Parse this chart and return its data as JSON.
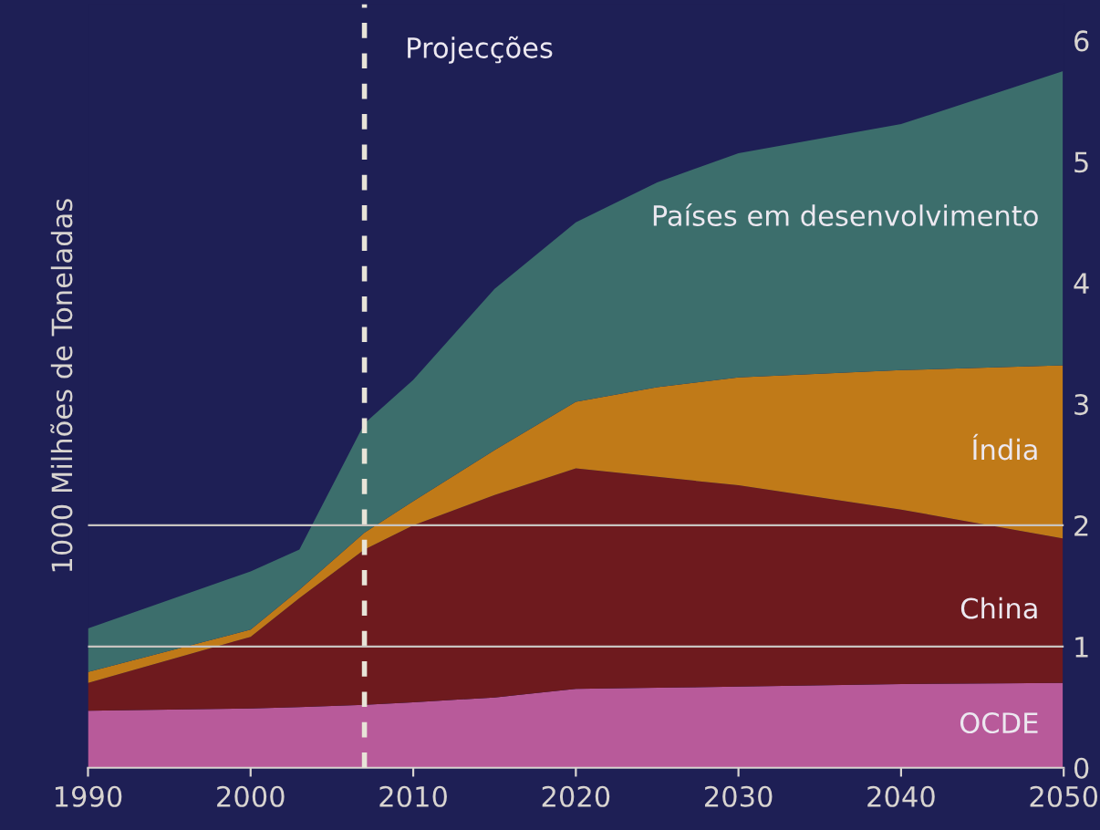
{
  "chart_data": {
    "type": "area",
    "stacked": true,
    "ylabel": "1000 Milhões de Toneladas",
    "x": [
      1990,
      2000,
      2003,
      2007,
      2010,
      2015,
      2020,
      2025,
      2030,
      2040,
      2050
    ],
    "series": [
      {
        "name": "OCDE",
        "color": "#b85a9a",
        "values": [
          0.47,
          0.49,
          0.5,
          0.52,
          0.54,
          0.58,
          0.65,
          0.66,
          0.67,
          0.69,
          0.7
        ]
      },
      {
        "name": "China",
        "color": "#6e1a1e",
        "values": [
          0.23,
          0.59,
          0.9,
          1.28,
          1.46,
          1.67,
          1.82,
          1.74,
          1.66,
          1.44,
          1.19
        ]
      },
      {
        "name": "Índia",
        "color": "#c07a18",
        "values": [
          0.09,
          0.06,
          0.07,
          0.14,
          0.2,
          0.37,
          0.55,
          0.74,
          0.89,
          1.15,
          1.43
        ]
      },
      {
        "name": "Países em desenvolvimento",
        "color": "#3c6e6c",
        "values": [
          0.36,
          0.48,
          0.33,
          0.9,
          1.0,
          1.33,
          1.48,
          1.69,
          1.85,
          2.03,
          2.43
        ]
      }
    ],
    "xlim": [
      1990,
      2050
    ],
    "xticks": [
      1990,
      2000,
      2010,
      2020,
      2030,
      2040,
      2050
    ],
    "ylim": [
      0,
      6.3
    ],
    "yticks": [
      0,
      1,
      2,
      3,
      4,
      5,
      6
    ],
    "ref_lines": [
      {
        "axis": "x",
        "value": 2007,
        "label": "Projecções",
        "color": "#e8e4d8",
        "line_style": "dashed"
      },
      {
        "axis": "y",
        "value": 1,
        "label": null,
        "color": "#c8c4c0"
      },
      {
        "axis": "y",
        "value": 2,
        "label": null,
        "color": "#c8c4c0"
      }
    ],
    "grid": false,
    "legend": false
  }
}
